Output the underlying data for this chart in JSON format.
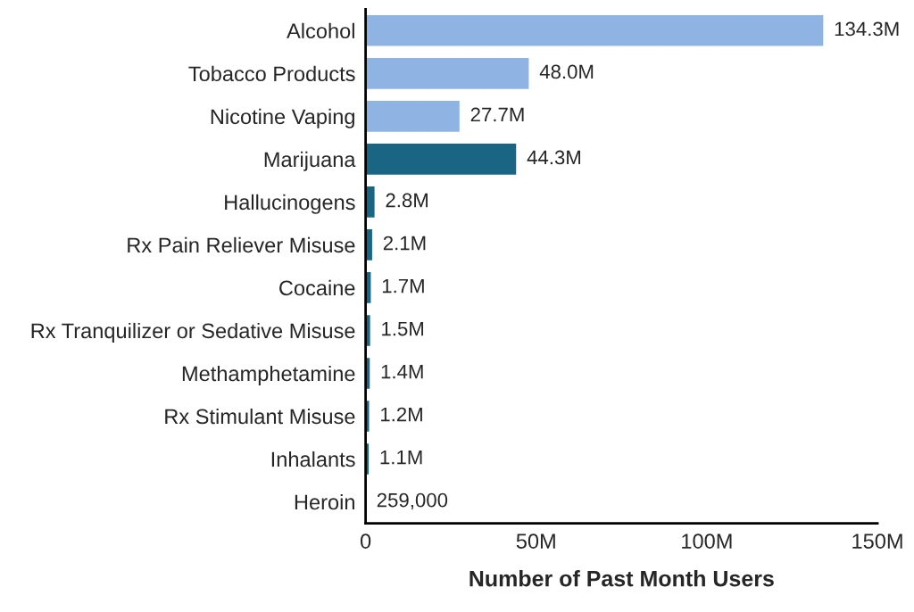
{
  "chart_data": {
    "type": "bar",
    "orientation": "horizontal",
    "xlabel": "Number of Past Month Users",
    "categories": [
      "Alcohol",
      "Tobacco Products",
      "Nicotine Vaping",
      "Marijuana",
      "Hallucinogens",
      "Rx Pain Reliever Misuse",
      "Cocaine",
      "Rx Tranquilizer or Sedative Misuse",
      "Methamphetamine",
      "Rx Stimulant Misuse",
      "Inhalants",
      "Heroin"
    ],
    "values": [
      134300000,
      48000000,
      27700000,
      44300000,
      2800000,
      2100000,
      1700000,
      1500000,
      1400000,
      1200000,
      1100000,
      259000
    ],
    "value_labels": [
      "134.3M",
      "48.0M",
      "27.7M",
      "44.3M",
      "2.8M",
      "2.1M",
      "1.7M",
      "1.5M",
      "1.4M",
      "1.2M",
      "1.1M",
      "259,000"
    ],
    "colors": [
      "#8fb4e3",
      "#8fb4e3",
      "#8fb4e3",
      "#1b6584",
      "#1b6584",
      "#1b6584",
      "#1b6584",
      "#1b6584",
      "#1b6584",
      "#1b6584",
      "#1b6584",
      "#1b6584"
    ],
    "xlim": [
      0,
      150000000
    ],
    "xticks": [
      0,
      {
        "value": 50000000,
        "label": "50M"
      },
      {
        "value": 100000000,
        "label": "100M"
      },
      {
        "value": 150000000,
        "label": "150M"
      }
    ],
    "grid": false
  }
}
